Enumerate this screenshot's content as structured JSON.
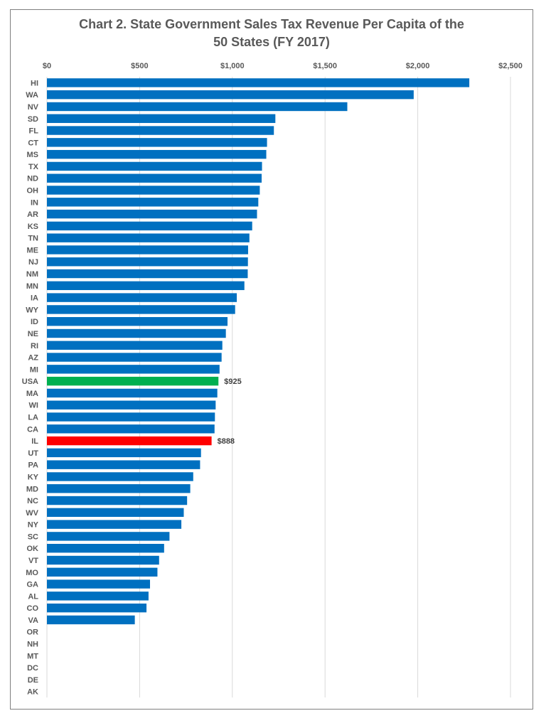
{
  "chart_data": {
    "type": "bar",
    "orientation": "horizontal",
    "title": [
      "Chart 2. State Government Sales Tax Revenue Per Capita of the",
      "50 States  (FY 2017)"
    ],
    "xlim": [
      0,
      2500
    ],
    "x_ticks": [
      0,
      500,
      1000,
      1500,
      2000,
      2500
    ],
    "x_tick_labels": [
      "$0",
      "$500",
      "$1,000",
      "$1,500",
      "$2,000",
      "$2,500"
    ],
    "axis_position": "top",
    "grid": true,
    "categories": [
      "HI",
      "WA",
      "NV",
      "SD",
      "FL",
      "CT",
      "MS",
      "TX",
      "ND",
      "OH",
      "IN",
      "AR",
      "KS",
      "TN",
      "ME",
      "NJ",
      "NM",
      "MN",
      "IA",
      "WY",
      "ID",
      "NE",
      "RI",
      "AZ",
      "MI",
      "USA",
      "MA",
      "WI",
      "LA",
      "CA",
      "IL",
      "UT",
      "PA",
      "KY",
      "MD",
      "NC",
      "WV",
      "NY",
      "SC",
      "OK",
      "VT",
      "MO",
      "GA",
      "AL",
      "CO",
      "VA",
      "OR",
      "NH",
      "MT",
      "DC",
      "DE",
      "AK"
    ],
    "values": [
      2278,
      1978,
      1620,
      1232,
      1224,
      1187,
      1183,
      1160,
      1158,
      1148,
      1140,
      1133,
      1107,
      1092,
      1085,
      1084,
      1083,
      1065,
      1024,
      1015,
      974,
      965,
      946,
      942,
      931,
      925,
      919,
      910,
      906,
      904,
      888,
      831,
      826,
      789,
      773,
      756,
      738,
      725,
      661,
      632,
      605,
      596,
      556,
      548,
      537,
      474,
      0,
      0,
      0,
      0,
      0,
      0
    ],
    "colors": {
      "default": "#0070C0",
      "USA": "#00B050",
      "IL": "#FF0000"
    },
    "data_labels": [
      {
        "category": "USA",
        "text": "$925"
      },
      {
        "category": "IL",
        "text": "$888"
      }
    ]
  }
}
